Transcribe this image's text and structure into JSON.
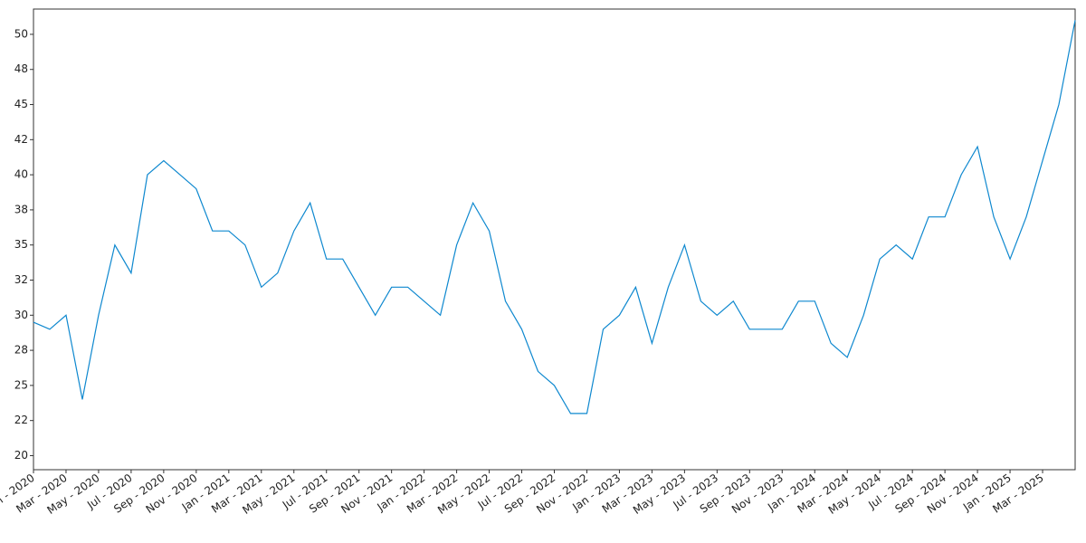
{
  "chart_data": {
    "type": "line",
    "x": [
      "2020-01",
      "2020-02",
      "2020-03",
      "2020-04",
      "2020-05",
      "2020-06",
      "2020-07",
      "2020-08",
      "2020-09",
      "2020-10",
      "2020-11",
      "2020-12",
      "2021-01",
      "2021-02",
      "2021-03",
      "2021-04",
      "2021-05",
      "2021-06",
      "2021-07",
      "2021-08",
      "2021-09",
      "2021-10",
      "2021-11",
      "2021-12",
      "2022-01",
      "2022-02",
      "2022-03",
      "2022-04",
      "2022-05",
      "2022-06",
      "2022-07",
      "2022-08",
      "2022-09",
      "2022-10",
      "2022-11",
      "2022-12",
      "2023-01",
      "2023-02",
      "2023-03",
      "2023-04",
      "2023-05",
      "2023-06",
      "2023-07",
      "2023-08",
      "2023-09",
      "2023-10",
      "2023-11",
      "2023-12",
      "2024-01",
      "2024-02",
      "2024-03",
      "2024-04",
      "2024-05",
      "2024-06",
      "2024-07",
      "2024-08",
      "2024-09",
      "2024-10",
      "2024-11",
      "2024-12",
      "2025-01",
      "2025-02",
      "2025-03",
      "2025-04",
      "2025-05"
    ],
    "series": [
      {
        "color": "#0e88cf",
        "values": [
          29.5,
          29,
          30,
          24,
          30,
          35,
          33,
          40,
          41,
          40,
          39,
          36,
          36,
          35,
          32,
          33,
          36,
          38,
          34,
          34,
          32,
          30,
          32,
          32,
          31,
          30,
          35,
          38,
          36,
          31,
          29,
          26,
          25,
          23,
          23,
          29,
          30,
          32,
          28,
          32,
          35,
          31,
          30,
          31,
          29,
          29,
          29,
          31,
          31,
          28,
          27,
          30,
          34,
          35,
          34,
          37,
          37,
          40,
          42,
          37,
          34,
          37,
          41,
          45,
          51
        ]
      }
    ],
    "xlim": [
      "2020-01",
      "2025-05"
    ],
    "xticks": [
      {
        "value": "2020-01",
        "label": "Jan - 2020"
      },
      {
        "value": "2020-03",
        "label": "Mar - 2020"
      },
      {
        "value": "2020-05",
        "label": "May - 2020"
      },
      {
        "value": "2020-07",
        "label": "Jul - 2020"
      },
      {
        "value": "2020-09",
        "label": "Sep - 2020"
      },
      {
        "value": "2020-11",
        "label": "Nov - 2020"
      },
      {
        "value": "2021-01",
        "label": "Jan - 2021"
      },
      {
        "value": "2021-03",
        "label": "Mar - 2021"
      },
      {
        "value": "2021-05",
        "label": "May - 2021"
      },
      {
        "value": "2021-07",
        "label": "Jul - 2021"
      },
      {
        "value": "2021-09",
        "label": "Sep - 2021"
      },
      {
        "value": "2021-11",
        "label": "Nov - 2021"
      },
      {
        "value": "2022-01",
        "label": "Jan - 2022"
      },
      {
        "value": "2022-03",
        "label": "Mar - 2022"
      },
      {
        "value": "2022-05",
        "label": "May - 2022"
      },
      {
        "value": "2022-07",
        "label": "Jul - 2022"
      },
      {
        "value": "2022-09",
        "label": "Sep - 2022"
      },
      {
        "value": "2022-11",
        "label": "Nov - 2022"
      },
      {
        "value": "2023-01",
        "label": "Jan - 2023"
      },
      {
        "value": "2023-03",
        "label": "Mar - 2023"
      },
      {
        "value": "2023-05",
        "label": "May - 2023"
      },
      {
        "value": "2023-07",
        "label": "Jul - 2023"
      },
      {
        "value": "2023-09",
        "label": "Sep - 2023"
      },
      {
        "value": "2023-11",
        "label": "Nov - 2023"
      },
      {
        "value": "2024-01",
        "label": "Jan - 2024"
      },
      {
        "value": "2024-03",
        "label": "Mar - 2024"
      },
      {
        "value": "2024-05",
        "label": "May - 2024"
      },
      {
        "value": "2024-07",
        "label": "Jul - 2024"
      },
      {
        "value": "2024-09",
        "label": "Sep - 2024"
      },
      {
        "value": "2024-11",
        "label": "Nov - 2024"
      },
      {
        "value": "2025-01",
        "label": "Jan - 2025"
      },
      {
        "value": "2025-03",
        "label": "Mar - 2025"
      }
    ],
    "ylim": [
      19,
      51.8
    ],
    "yticks": [
      20,
      {
        "value": 22.5,
        "label": "22"
      },
      25,
      {
        "value": 27.5,
        "label": "28"
      },
      30,
      {
        "value": 32.5,
        "label": "32"
      },
      35,
      {
        "value": 37.5,
        "label": "38"
      },
      40,
      {
        "value": 42.5,
        "label": "42"
      },
      45,
      {
        "value": 47.5,
        "label": "48"
      },
      50
    ],
    "grid": false
  }
}
